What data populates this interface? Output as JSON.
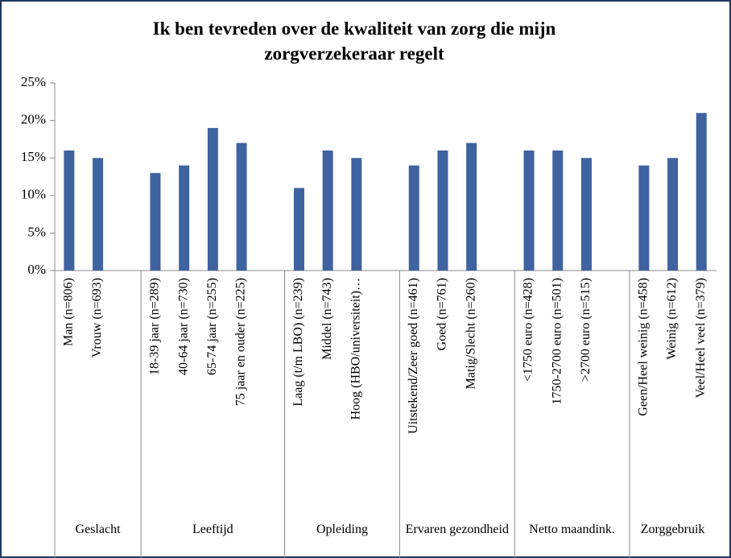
{
  "chart_data": {
    "type": "grouped_bar",
    "title": "Ik ben tevreden over de kwaliteit van zorg die mijn zorgverzekeraar regelt",
    "color": "#3f62a0",
    "ylim": [
      0,
      25
    ],
    "yticks": [
      {
        "value": 0,
        "label": "0%"
      },
      {
        "value": 5,
        "label": "5%"
      },
      {
        "value": 10,
        "label": "10%"
      },
      {
        "value": 15,
        "label": "15%"
      },
      {
        "value": 20,
        "label": "20%"
      },
      {
        "value": 25,
        "label": "25%"
      }
    ],
    "grid": false,
    "groups": [
      {
        "name": "Geslacht",
        "categories": [
          "Man (n=806)",
          "Vrouw (n=693)"
        ],
        "values": [
          16,
          15
        ]
      },
      {
        "name": "Leeftijd",
        "categories": [
          "18-39 jaar (n=289)",
          "40-64 jaar (n=730)",
          "65-74 jaar (n=255)",
          "75 jaar en ouder (n=225)"
        ],
        "values": [
          13,
          14,
          19,
          17
        ]
      },
      {
        "name": "Opleiding",
        "categories": [
          "Laag (t/m LBO) (n=239)",
          "Middel (n=743)",
          "Hoog (HBO/universiteit)…"
        ],
        "values": [
          11,
          16,
          15
        ]
      },
      {
        "name": "Ervaren gezondheid",
        "categories": [
          "Uitstekend/Zeer goed (n=461)",
          "Goed (n=761)",
          "Matig/Slecht (n=260)"
        ],
        "values": [
          14,
          16,
          17
        ]
      },
      {
        "name": "Netto maandink.",
        "categories": [
          "<1750 euro (n=428)",
          "1750-2700 euro (n=501)",
          ">2700 euro (n=515)"
        ],
        "values": [
          16,
          16,
          15
        ]
      },
      {
        "name": "Zorggebruik",
        "categories": [
          "Geen/Heel weinig (n=458)",
          "Weinig (n=612)",
          "Veel/Heel veel (n=379)"
        ],
        "values": [
          14,
          15,
          21
        ]
      }
    ]
  }
}
